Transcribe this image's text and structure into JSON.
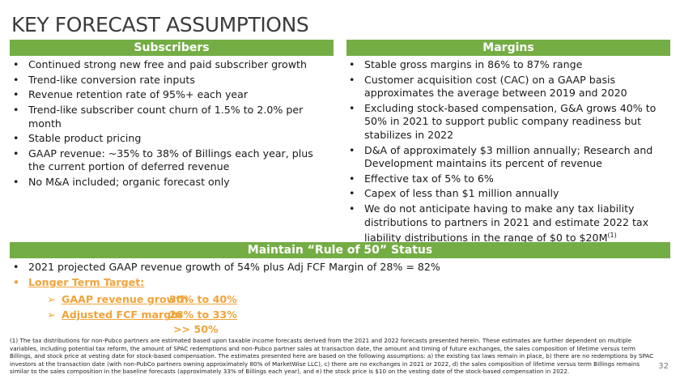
{
  "title": "KEY FORECAST ASSUMPTIONS",
  "subscribers": {
    "header": "Subscribers",
    "items": [
      "Continued strong new free and paid subscriber growth",
      "Trend-like conversion rate inputs",
      "Revenue retention rate of 95%+ each year",
      "Trend-like subscriber count churn of 1.5% to 2.0% per month",
      "Stable product pricing",
      "GAAP revenue: ~35% to 38% of Billings each year, plus the current portion of deferred revenue",
      "No M&A included; organic forecast only"
    ]
  },
  "margins": {
    "header": "Margins",
    "items": [
      "Stable gross margins in 86% to 87% range",
      "Customer acquisition cost (CAC) on a GAAP basis approximates the average between 2019 and 2020",
      "Excluding stock-based compensation, G&A grows 40% to 50% in 2021 to support public company readiness but stabilizes in 2022",
      "D&A of approximately $3 million annually; Research and Development maintains its percent of revenue",
      "Effective tax of 5% to 6%",
      "Capex of less than $1 million annually"
    ],
    "last_item": "We do not anticipate having to make any tax liability distributions to partners in 2021 and estimate 2022 tax liability distributions in the range of $0 to $20M",
    "last_item_sup": "(1)"
  },
  "rule50": {
    "header": "Maintain “Rule of 50” Status",
    "item1": "2021 projected GAAP revenue growth of 54% plus Adj FCF Margin of 28% = 82%",
    "target_label": "Longer Term Target:",
    "rows": [
      {
        "label": "GAAP revenue growth",
        "value": "30% to 40%"
      },
      {
        "label": "Adjusted FCF margin",
        "value": "28% to 33%"
      }
    ],
    "total": ">> 50%"
  },
  "footnote": "(1) The tax distributions for non-Pubco partners are estimated based upon taxable income forecasts derived from the 2021 and 2022 forecasts presented herein. These estimates are further dependent on multiple variables, including potential tax reform, the amount of SPAC redemptions and non-Pubco partner sales at transaction date, the amount and timing of future exchanges, the sales composition of lifetime versus term Billings, and stock price at vesting date for stock-based compensation.  The estimates presented here are based on the following assumptions: a) the existing tax laws remain in place, b) there are no redemptions by SPAC investors at the transaction date (with non-PubCo partners owning approximately 80% of MarketWise LLC), c) there are no exchanges in 2021 or 2022, d) the sales composition of lifetime versus term Billings remains similar to the sales composition in the baseline forecasts (approximately 33% of Billings each year), and e) the stock price is $10 on the vesting date of the stock-based compensation in 2022.",
  "page_number": "32",
  "bullet": "•",
  "arrow": "➢"
}
